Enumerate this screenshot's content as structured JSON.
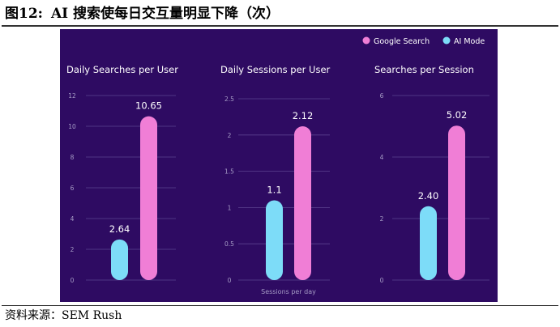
{
  "figure": {
    "label": "图12:",
    "title": "AI 搜索使每日交互量明显下降（次）"
  },
  "source": "资料来源：SEM Rush",
  "colors": {
    "background": "#2e0b62",
    "google": "#f07ed6",
    "ai": "#7ddcf8",
    "grid": "#5b4390",
    "tick": "#a79dc6",
    "text": "#ffffff"
  },
  "legend": [
    {
      "name": "Google Search",
      "color": "#f07ed6"
    },
    {
      "name": "AI Mode",
      "color": "#7ddcf8"
    }
  ],
  "chart_data": [
    {
      "type": "bar",
      "title": "Daily Searches per User",
      "xlabel": "",
      "ylabel": "",
      "ylim": [
        0,
        12
      ],
      "yticks": [
        "0",
        "2",
        "4",
        "6",
        "8",
        "10",
        "12"
      ],
      "series": [
        {
          "name": "AI Mode",
          "values": [
            2.64
          ],
          "labels": [
            "2.64"
          ]
        },
        {
          "name": "Google Search",
          "values": [
            10.65
          ],
          "labels": [
            "10.65"
          ]
        }
      ]
    },
    {
      "type": "bar",
      "title": "Daily Sessions per User",
      "xlabel": "Sessions per day",
      "ylabel": "",
      "ylim": [
        0,
        2.5
      ],
      "yticks": [
        "0",
        "0.5",
        "1",
        "1.5",
        "2",
        "2.5"
      ],
      "series": [
        {
          "name": "AI Mode",
          "values": [
            1.1
          ],
          "labels": [
            "1.1"
          ]
        },
        {
          "name": "Google Search",
          "values": [
            2.12
          ],
          "labels": [
            "2.12"
          ]
        }
      ]
    },
    {
      "type": "bar",
      "title": "Searches per Session",
      "xlabel": "",
      "ylabel": "",
      "ylim": [
        0,
        6
      ],
      "yticks": [
        "0",
        "2",
        "4",
        "6"
      ],
      "series": [
        {
          "name": "AI Mode",
          "values": [
            2.4
          ],
          "labels": [
            "2.40"
          ]
        },
        {
          "name": "Google Search",
          "values": [
            5.02
          ],
          "labels": [
            "5.02"
          ]
        }
      ]
    }
  ]
}
